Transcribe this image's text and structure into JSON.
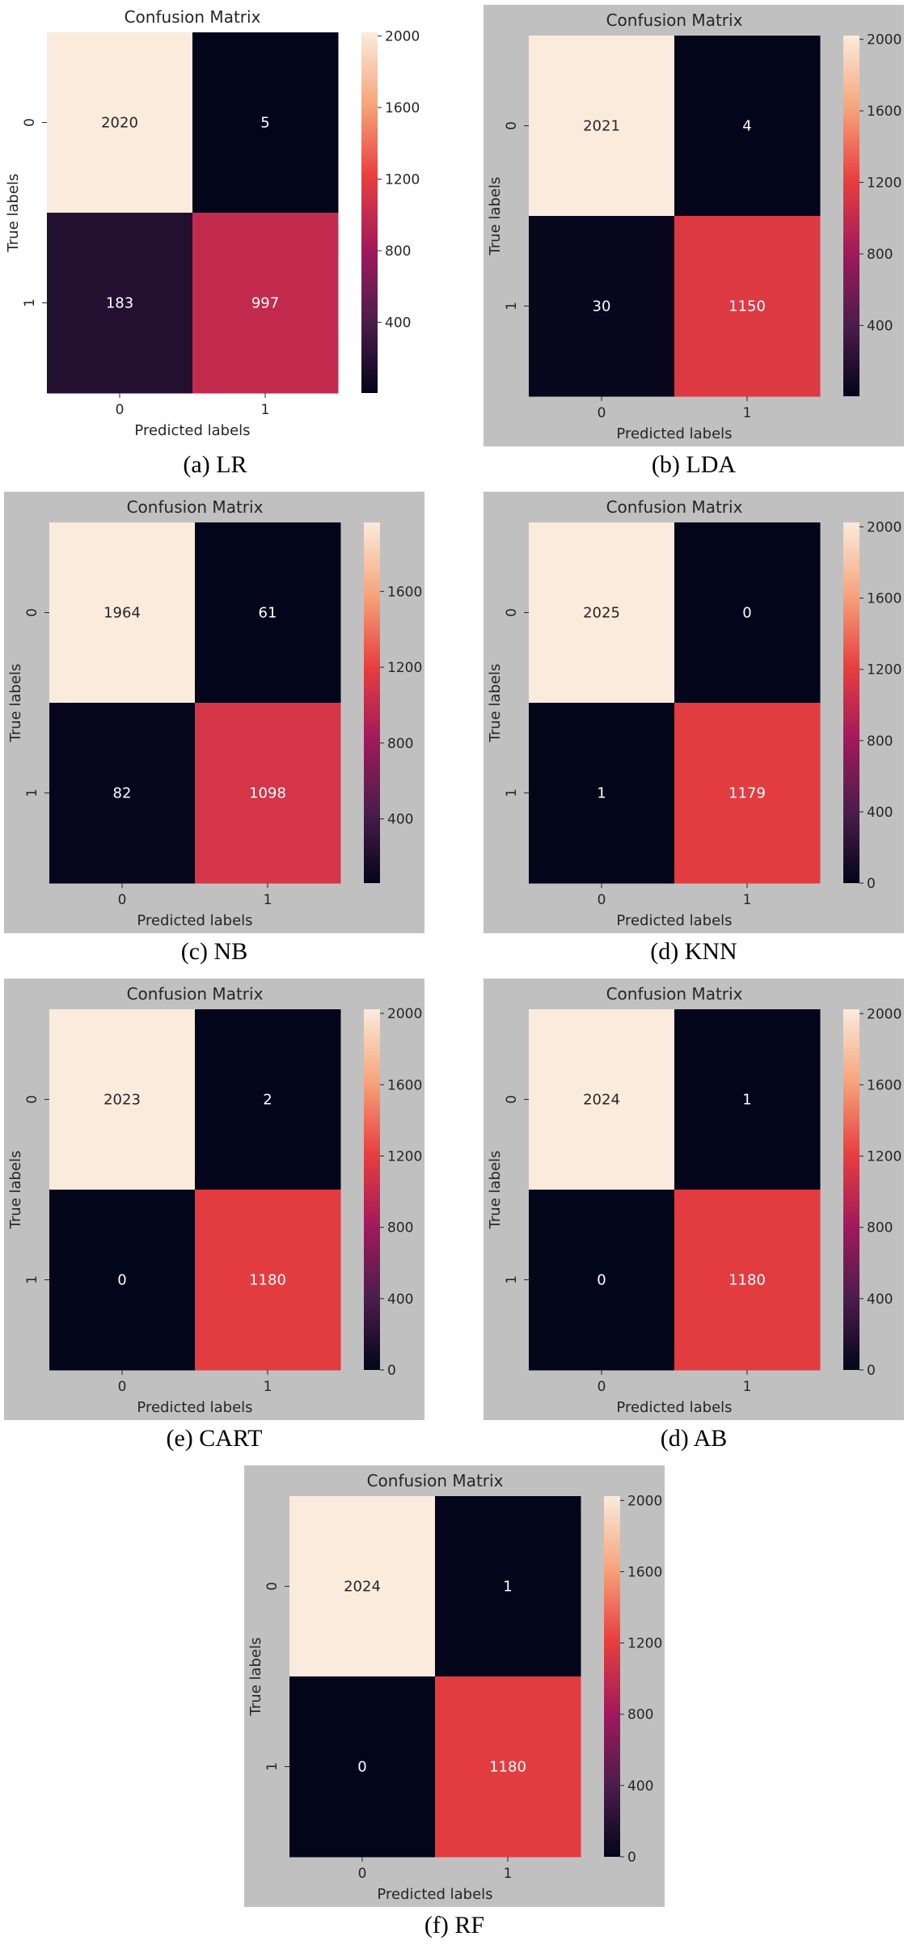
{
  "chart_data": [
    {
      "type": "heatmap",
      "title": "Confusion Matrix",
      "xlabel": "Predicted labels",
      "ylabel": "True labels",
      "x_ticks": [
        "0",
        "1"
      ],
      "y_ticks": [
        "0",
        "1"
      ],
      "values": [
        [
          2020,
          5
        ],
        [
          183,
          997
        ]
      ],
      "colorbar_ticks": [
        400,
        800,
        1200,
        1600,
        2000
      ],
      "colorbar_range": [
        5,
        2020
      ],
      "caption": "(a) LR"
    },
    {
      "type": "heatmap",
      "title": "Confusion Matrix",
      "xlabel": "Predicted labels",
      "ylabel": "True labels",
      "x_ticks": [
        "0",
        "1"
      ],
      "y_ticks": [
        "0",
        "1"
      ],
      "values": [
        [
          2021,
          4
        ],
        [
          30,
          1150
        ]
      ],
      "colorbar_ticks": [
        400,
        800,
        1200,
        1600,
        2000
      ],
      "colorbar_range": [
        4,
        2021
      ],
      "caption": "(b) LDA"
    },
    {
      "type": "heatmap",
      "title": "Confusion Matrix",
      "xlabel": "Predicted labels",
      "ylabel": "True labels",
      "x_ticks": [
        "0",
        "1"
      ],
      "y_ticks": [
        "0",
        "1"
      ],
      "values": [
        [
          1964,
          61
        ],
        [
          82,
          1098
        ]
      ],
      "colorbar_ticks": [
        400,
        800,
        1200,
        1600
      ],
      "colorbar_range": [
        61,
        1964
      ],
      "caption": "(c) NB"
    },
    {
      "type": "heatmap",
      "title": "Confusion Matrix",
      "xlabel": "Predicted labels",
      "ylabel": "True labels",
      "x_ticks": [
        "0",
        "1"
      ],
      "y_ticks": [
        "0",
        "1"
      ],
      "values": [
        [
          2025,
          0
        ],
        [
          1,
          1179
        ]
      ],
      "colorbar_ticks": [
        0,
        400,
        800,
        1200,
        1600,
        2000
      ],
      "colorbar_range": [
        0,
        2025
      ],
      "caption": "(d) KNN"
    },
    {
      "type": "heatmap",
      "title": "Confusion Matrix",
      "xlabel": "Predicted labels",
      "ylabel": "True labels",
      "x_ticks": [
        "0",
        "1"
      ],
      "y_ticks": [
        "0",
        "1"
      ],
      "values": [
        [
          2023,
          2
        ],
        [
          0,
          1180
        ]
      ],
      "colorbar_ticks": [
        0,
        400,
        800,
        1200,
        1600,
        2000
      ],
      "colorbar_range": [
        0,
        2023
      ],
      "caption": "(e) CART"
    },
    {
      "type": "heatmap",
      "title": "Confusion Matrix",
      "xlabel": "Predicted labels",
      "ylabel": "True labels",
      "x_ticks": [
        "0",
        "1"
      ],
      "y_ticks": [
        "0",
        "1"
      ],
      "values": [
        [
          2024,
          1
        ],
        [
          0,
          1180
        ]
      ],
      "colorbar_ticks": [
        0,
        400,
        800,
        1200,
        1600,
        2000
      ],
      "colorbar_range": [
        0,
        2024
      ],
      "caption": "(d) AB"
    },
    {
      "type": "heatmap",
      "title": "Confusion Matrix",
      "xlabel": "Predicted labels",
      "ylabel": "True labels",
      "x_ticks": [
        "0",
        "1"
      ],
      "y_ticks": [
        "0",
        "1"
      ],
      "values": [
        [
          2024,
          1
        ],
        [
          0,
          1180
        ]
      ],
      "colorbar_ticks": [
        0,
        400,
        800,
        1200,
        1600,
        2000
      ],
      "colorbar_range": [
        0,
        2024
      ],
      "caption": "(f) RF"
    }
  ],
  "colors": {
    "panel_background": "#c0c0c0",
    "first_panel_background": "#ffffff",
    "text_light": "#ffffff",
    "text_dark": "#262626",
    "colormap": [
      "#03051a",
      "#4c1d4b",
      "#a11a5b",
      "#e83f3f",
      "#f6a47b",
      "#faebdd"
    ]
  }
}
